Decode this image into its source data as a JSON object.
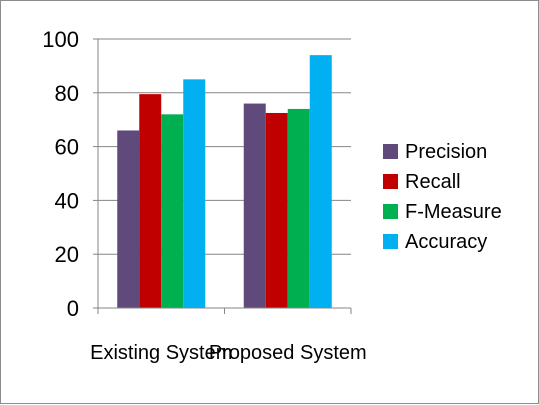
{
  "chart_data": {
    "type": "bar",
    "categories": [
      "Existing System",
      "Proposed System"
    ],
    "series": [
      {
        "name": "Precision",
        "values": [
          66,
          76
        ],
        "color": "#604a7b"
      },
      {
        "name": "Recall",
        "values": [
          79.5,
          72.5
        ],
        "color": "#c00000"
      },
      {
        "name": "F-Measure",
        "values": [
          72,
          74
        ],
        "color": "#00b050"
      },
      {
        "name": "Accuracy",
        "values": [
          85,
          94
        ],
        "color": "#00b0f0"
      }
    ],
    "yticks": [
      0,
      20,
      40,
      60,
      80,
      100
    ],
    "ylim": [
      0,
      100
    ],
    "grid": true,
    "legend": "right",
    "title": "",
    "xlabel": "",
    "ylabel": ""
  }
}
